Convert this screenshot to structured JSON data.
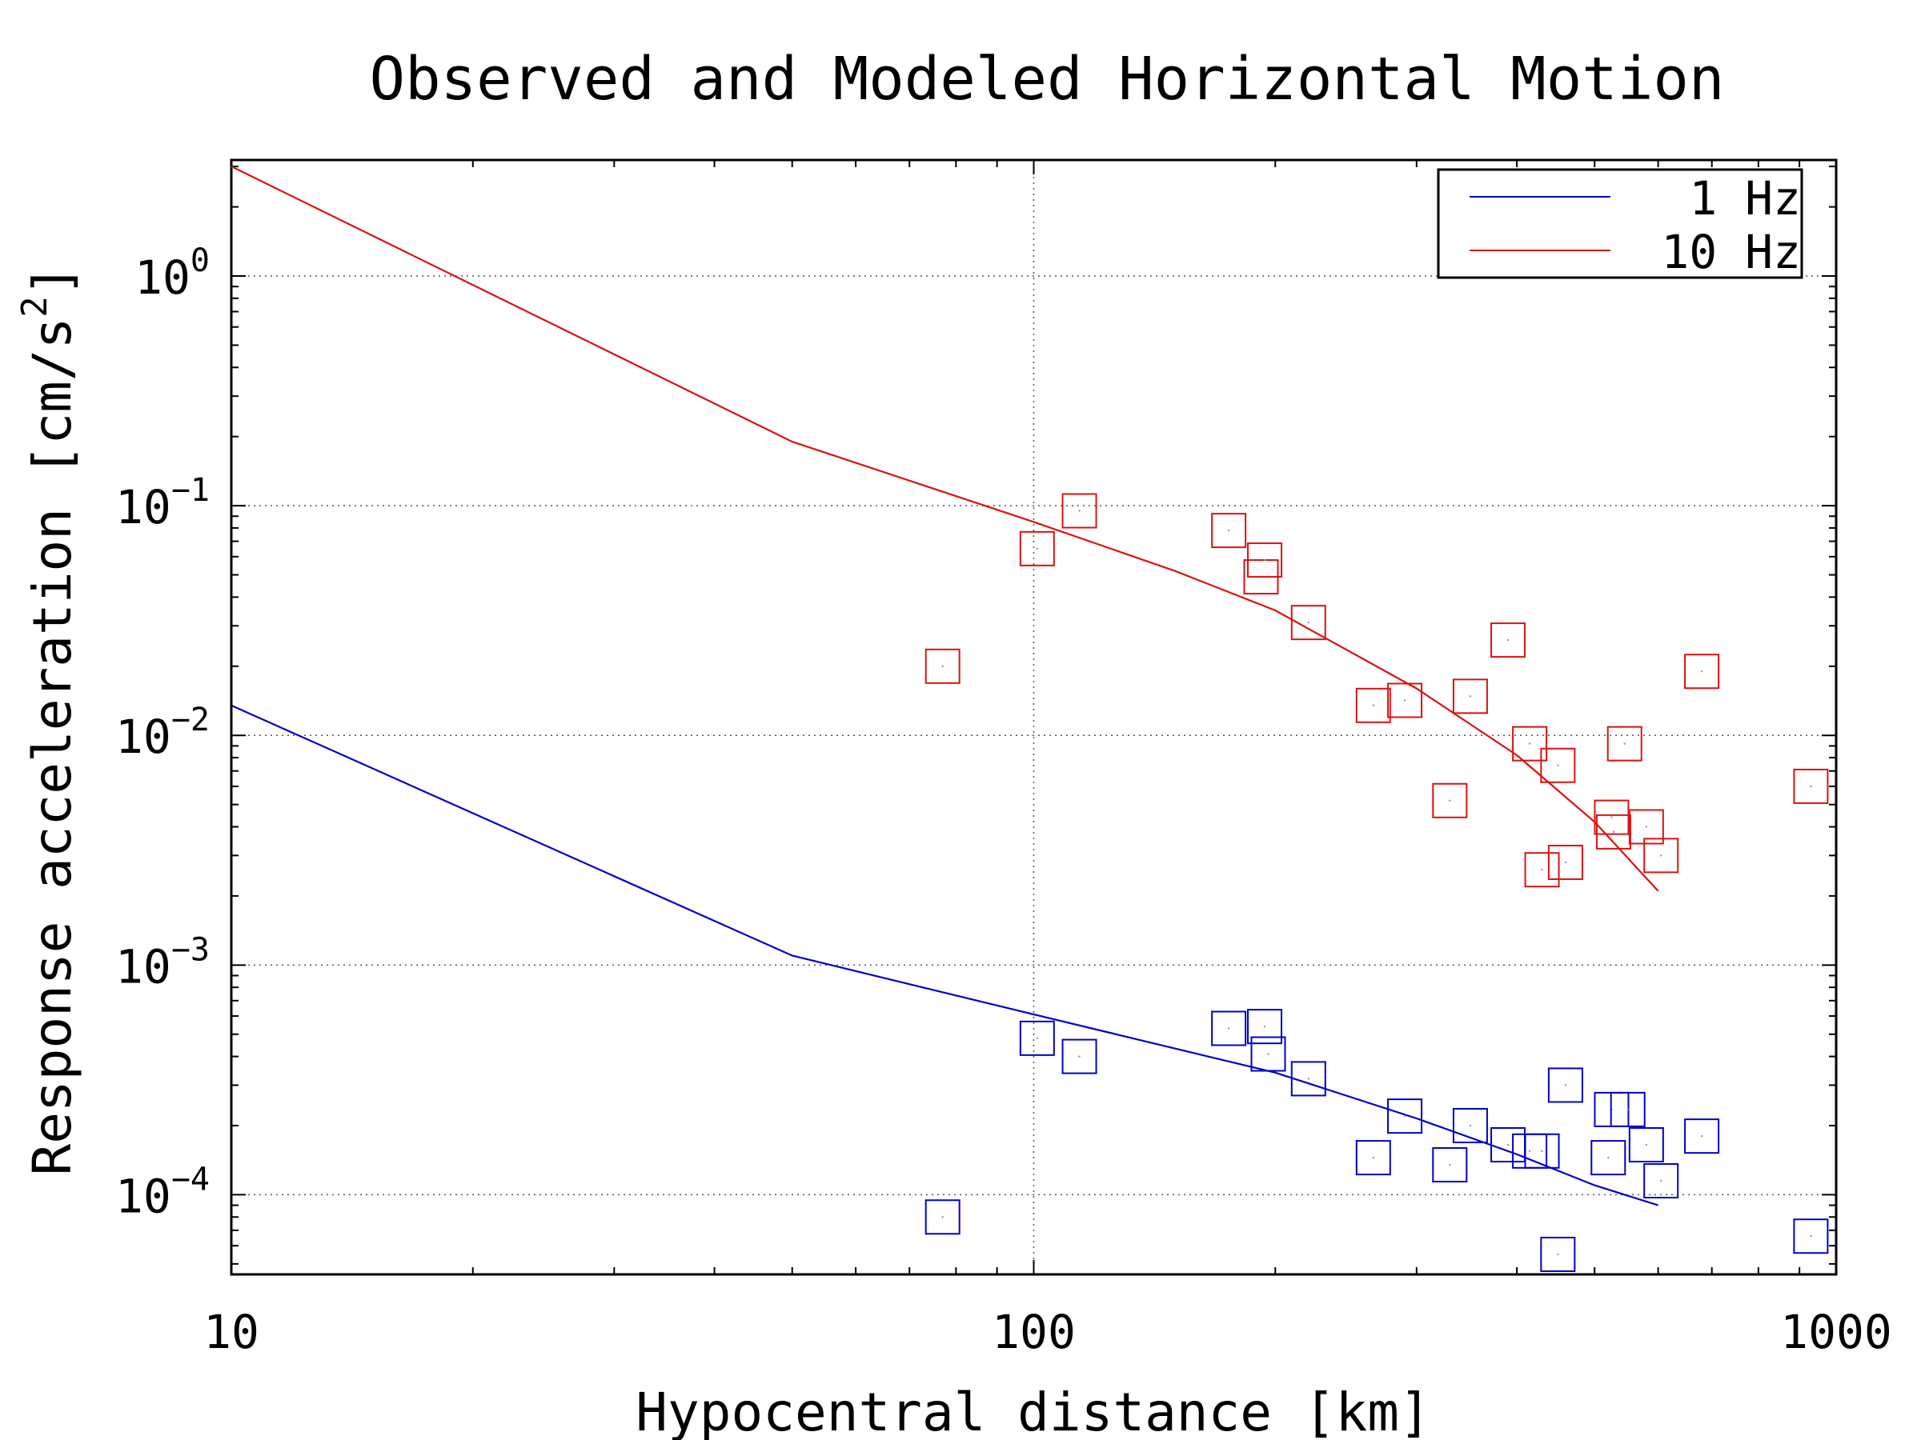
{
  "chart_data": {
    "type": "line",
    "title": "Observed and Modeled Horizontal Motion",
    "xlabel": "Hypocentral distance [km]",
    "ylabel": "Response acceleration [cm/s^2]",
    "x_scale": "log",
    "y_scale": "log",
    "xlim": [
      10,
      1000
    ],
    "ylim": [
      4.5e-05,
      3.2
    ],
    "x_ticks": [
      {
        "value": 10,
        "label": "10"
      },
      {
        "value": 100,
        "label": "100"
      },
      {
        "value": 1000,
        "label": "1000"
      }
    ],
    "y_ticks": [
      {
        "value": 1,
        "base": "10",
        "exp": "0"
      },
      {
        "value": 0.1,
        "base": "10",
        "exp": "−1"
      },
      {
        "value": 0.01,
        "base": "10",
        "exp": "−2"
      },
      {
        "value": 0.001,
        "base": "10",
        "exp": "−3"
      },
      {
        "value": 0.0001,
        "base": "10",
        "exp": "−4"
      }
    ],
    "grid": true,
    "legend_position": "top-right",
    "series": [
      {
        "name": "1 Hz",
        "color": "#0000cc",
        "line": {
          "x": [
            10,
            50,
            100,
            200,
            300,
            400,
            500,
            600
          ],
          "y": [
            0.0135,
            0.0011,
            0.00061,
            0.00034,
            0.000215,
            0.00015,
            0.00011,
            9e-05
          ]
        },
        "observed": {
          "x": [
            77,
            101,
            114,
            175,
            194,
            196,
            220,
            265,
            290,
            330,
            350,
            390,
            415,
            430,
            450,
            460,
            520,
            525,
            550,
            580,
            605,
            680,
            930
          ],
          "y": [
            8e-05,
            0.00048,
            0.0004,
            0.00053,
            0.00054,
            0.00041,
            0.00032,
            0.000145,
            0.00022,
            0.000135,
            0.0002,
            0.000165,
            0.000155,
            0.000155,
            5.5e-05,
            0.0003,
            0.000145,
            0.000235,
            0.000235,
            0.000165,
            0.000115,
            0.00018,
            6.6e-05
          ]
        }
      },
      {
        "name": "10 Hz",
        "color": "#dd1111",
        "line": {
          "x": [
            10,
            50,
            100,
            150,
            200,
            300,
            400,
            500,
            600
          ],
          "y": [
            3,
            0.19,
            0.085,
            0.052,
            0.035,
            0.016,
            0.0082,
            0.0042,
            0.0021
          ]
        },
        "observed": {
          "x": [
            77,
            101,
            114,
            175,
            192,
            194,
            220,
            265,
            290,
            330,
            350,
            390,
            415,
            430,
            450,
            460,
            525,
            528,
            545,
            580,
            605,
            680,
            930
          ],
          "y": [
            0.02,
            0.065,
            0.095,
            0.078,
            0.049,
            0.058,
            0.031,
            0.0135,
            0.0142,
            0.0052,
            0.0148,
            0.026,
            0.0092,
            0.0026,
            0.0074,
            0.0028,
            0.0044,
            0.0038,
            0.0092,
            0.004,
            0.003,
            0.019,
            0.006
          ]
        }
      }
    ]
  }
}
